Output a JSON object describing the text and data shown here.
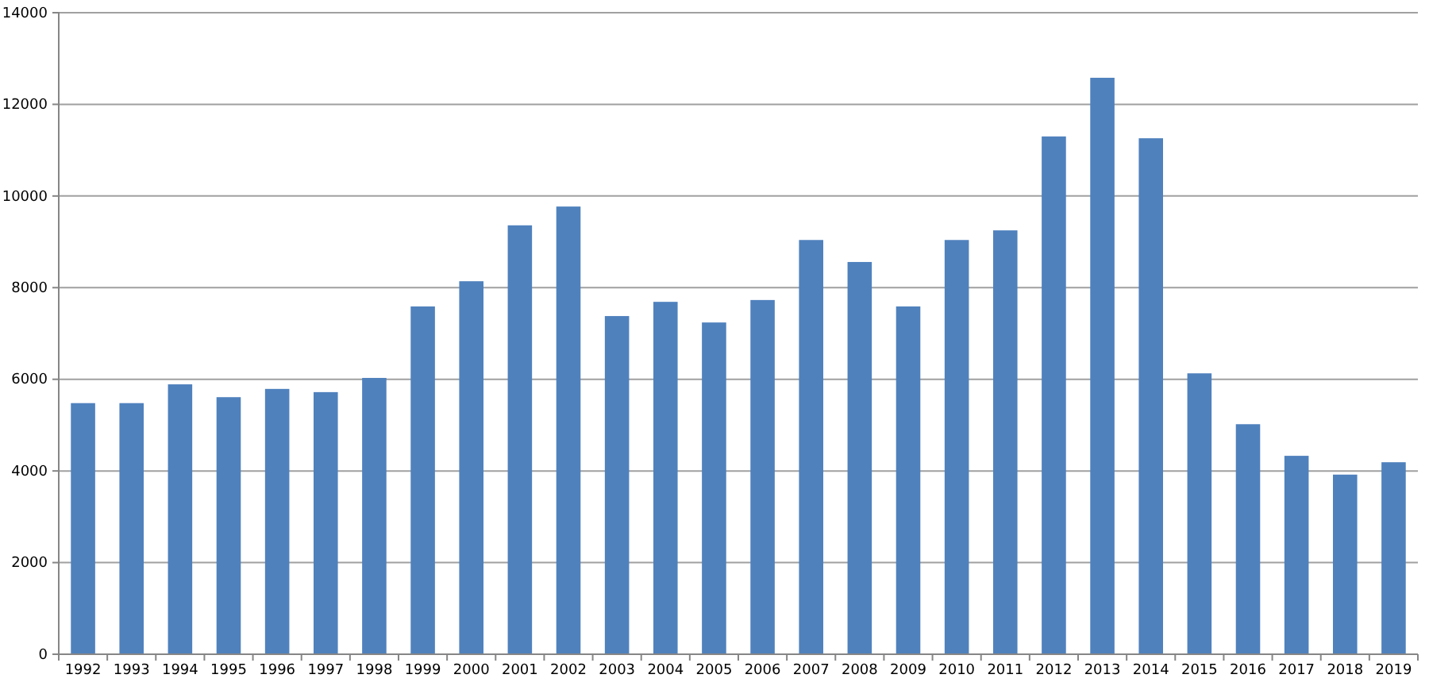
{
  "chart_data": {
    "type": "bar",
    "categories": [
      "1992",
      "1993",
      "1994",
      "1995",
      "1996",
      "1997",
      "1998",
      "1999",
      "2000",
      "2001",
      "2002",
      "2003",
      "2004",
      "2005",
      "2006",
      "2007",
      "2008",
      "2009",
      "2010",
      "2011",
      "2012",
      "2013",
      "2014",
      "2015",
      "2016",
      "2017",
      "2018",
      "2019"
    ],
    "values": [
      5480,
      5480,
      5890,
      5610,
      5790,
      5720,
      6030,
      7590,
      8140,
      9360,
      9770,
      7380,
      7690,
      7240,
      7730,
      9040,
      8560,
      7590,
      9040,
      9250,
      11300,
      12580,
      11260,
      6130,
      5020,
      4330,
      3920,
      4190
    ],
    "color": "#4f81bd",
    "ylim": [
      0,
      14000
    ],
    "yticks": [
      0,
      2000,
      4000,
      6000,
      8000,
      10000,
      12000,
      14000
    ],
    "grid": "y"
  }
}
